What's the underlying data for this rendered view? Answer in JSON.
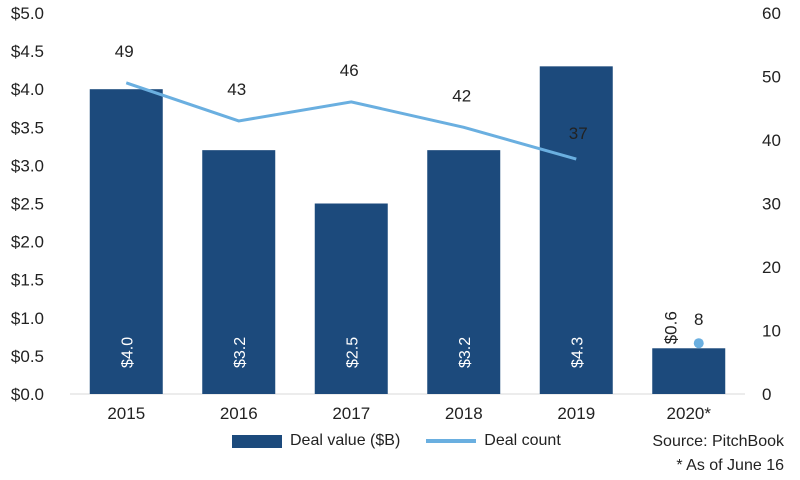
{
  "chart_data": {
    "type": "bar",
    "categories": [
      "2015",
      "2016",
      "2017",
      "2018",
      "2019",
      "2020*"
    ],
    "series": [
      {
        "name": "Deal value ($B)",
        "type": "bar",
        "axis": "left",
        "values": [
          4.0,
          3.2,
          2.5,
          3.2,
          4.3,
          0.6
        ],
        "labels": [
          "$4.0",
          "$3.2",
          "$2.5",
          "$3.2",
          "$4.3",
          "$0.6"
        ]
      },
      {
        "name": "Deal count",
        "type": "line",
        "axis": "right",
        "values": [
          49,
          43,
          46,
          42,
          37,
          8
        ],
        "labels": [
          "49",
          "43",
          "46",
          "42",
          "37",
          "8"
        ]
      }
    ],
    "y_left": {
      "min": 0,
      "max": 5,
      "ticks": [
        "$0.0",
        "$0.5",
        "$1.0",
        "$1.5",
        "$2.0",
        "$2.5",
        "$3.0",
        "$3.5",
        "$4.0",
        "$4.5",
        "$5.0"
      ]
    },
    "y_right": {
      "min": 0,
      "max": 60,
      "ticks": [
        "0",
        "10",
        "20",
        "30",
        "40",
        "50",
        "60"
      ]
    },
    "grid": false,
    "legend_position": "bottom"
  },
  "colors": {
    "bar": "#1c4a7c",
    "line": "#6aafe0"
  },
  "notes": {
    "source": "Source: PitchBook",
    "footnote": "* As of June 16"
  }
}
